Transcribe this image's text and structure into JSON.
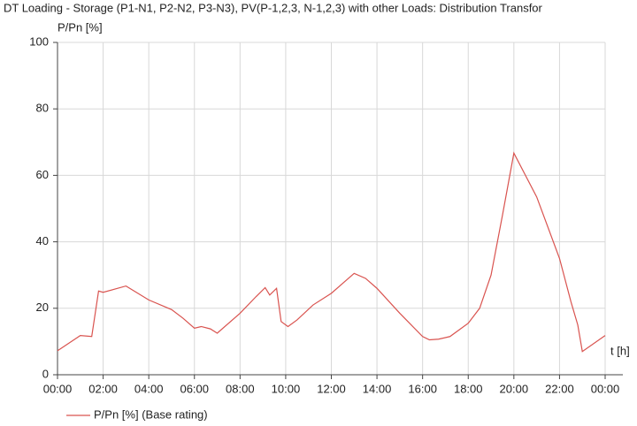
{
  "chart_data": {
    "type": "line",
    "title": "DT Loading - Storage (P1-N1, P2-N2, P3-N3), PV(P-1,2,3, N-1,2,3) with other Loads: Distribution Transfor",
    "y_label": "P/Pn [%]",
    "x_label": "t [h]",
    "x": [
      0,
      1,
      1.5,
      1.8,
      2,
      3,
      4,
      5,
      5.5,
      6,
      6.3,
      6.7,
      7,
      8,
      8.7,
      9.1,
      9.3,
      9.6,
      9.8,
      10.1,
      10.5,
      11.2,
      12,
      12.5,
      13,
      13.5,
      14,
      15,
      16,
      16.3,
      16.7,
      17.2,
      18,
      18.5,
      19,
      19.5,
      20,
      21,
      22,
      22.5,
      22.8,
      23,
      24
    ],
    "series": [
      {
        "name": "P/Pn [%] (Base rating)",
        "color": "#d9534f",
        "values": [
          7.2,
          11.8,
          11.5,
          25.2,
          24.8,
          26.7,
          22.5,
          19.6,
          17,
          14,
          14.5,
          13.8,
          12.5,
          18.5,
          23.5,
          26.2,
          24,
          26,
          16,
          14.5,
          16.5,
          21,
          24.5,
          27.5,
          30.5,
          29,
          26,
          18.5,
          11.5,
          10.5,
          10.7,
          11.5,
          15.5,
          20,
          30,
          48,
          66.7,
          53.5,
          35,
          22,
          15,
          7,
          11.8
        ]
      }
    ],
    "xlim": [
      0,
      24
    ],
    "xticks": [
      {
        "value": 0,
        "label": "00:00"
      },
      {
        "value": 2,
        "label": "02:00"
      },
      {
        "value": 4,
        "label": "04:00"
      },
      {
        "value": 6,
        "label": "06:00"
      },
      {
        "value": 8,
        "label": "08:00"
      },
      {
        "value": 10,
        "label": "10:00"
      },
      {
        "value": 12,
        "label": "12:00"
      },
      {
        "value": 14,
        "label": "14:00"
      },
      {
        "value": 16,
        "label": "16:00"
      },
      {
        "value": 18,
        "label": "18:00"
      },
      {
        "value": 20,
        "label": "20:00"
      },
      {
        "value": 22,
        "label": "22:00"
      },
      {
        "value": 24,
        "label": "00:00"
      }
    ],
    "ylim": [
      0,
      100
    ],
    "yticks": [
      0,
      20,
      40,
      60,
      80,
      100
    ],
    "grid": true
  }
}
